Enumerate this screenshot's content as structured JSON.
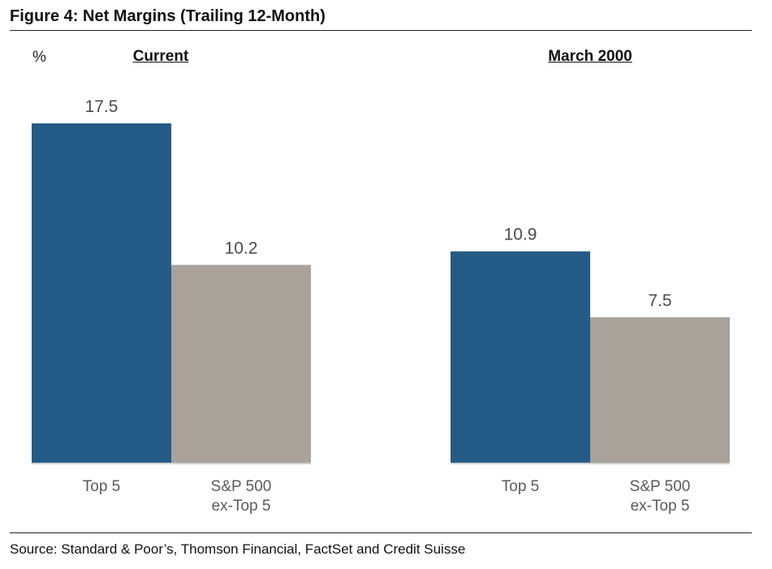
{
  "figure_title": "Figure 4: Net Margins (Trailing 12-Month)",
  "unit_label": "%",
  "source": "Source: Standard & Poor’s, Thomson Financial, FactSet and Credit Suisse",
  "colors": {
    "top5": "#245b86",
    "ex_top5": "#a8a29b",
    "axis": "#d0d0d0"
  },
  "chart_data": {
    "type": "bar",
    "title": "Figure 4: Net Margins (Trailing 12-Month)",
    "ylabel": "%",
    "ylim": [
      0,
      17.5
    ],
    "groups": [
      {
        "name": "Current",
        "bars": [
          {
            "label_lines": [
              "Top 5"
            ],
            "value": 17.5,
            "value_label": "17.5",
            "series": "top5"
          },
          {
            "label_lines": [
              "S&P 500",
              "ex-Top 5"
            ],
            "value": 10.2,
            "value_label": "10.2",
            "series": "ex_top5"
          }
        ]
      },
      {
        "name": "March 2000",
        "bars": [
          {
            "label_lines": [
              "Top 5"
            ],
            "value": 10.9,
            "value_label": "10.9",
            "series": "top5"
          },
          {
            "label_lines": [
              "S&P 500",
              "ex-Top 5"
            ],
            "value": 7.5,
            "value_label": "7.5",
            "series": "ex_top5"
          }
        ]
      }
    ]
  }
}
